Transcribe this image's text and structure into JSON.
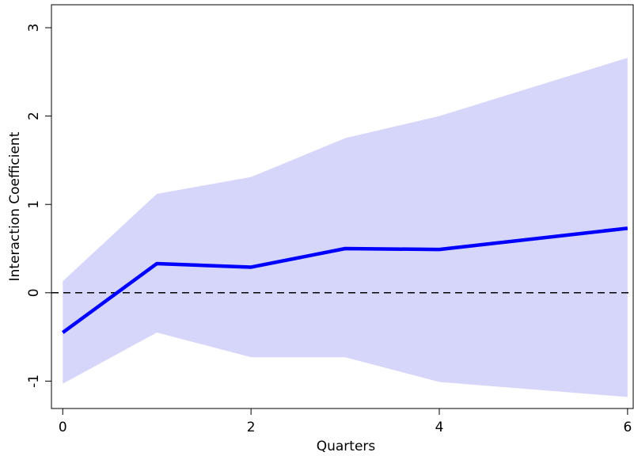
{
  "chart_data": {
    "type": "line_band",
    "x_label": "Quarters",
    "y_label": "Interaction Coefficient",
    "x": [
      0,
      1,
      2,
      3,
      4,
      6
    ],
    "series": [
      {
        "name": "Coefficient",
        "color": "#0000ff",
        "values": [
          -0.45,
          0.33,
          0.29,
          0.5,
          0.49,
          0.73
        ]
      }
    ],
    "band": {
      "color": "#d6d6fb",
      "lower": [
        -1.03,
        -0.45,
        -0.73,
        -0.73,
        -1.01,
        -1.18
      ],
      "upper": [
        0.13,
        1.12,
        1.31,
        1.75,
        2.0,
        2.66
      ]
    },
    "reference_line": 0,
    "xlim": [
      -0.12,
      6.06
    ],
    "ylim": [
      -1.31,
      3.26
    ],
    "xticks": [
      0,
      2,
      4,
      6
    ],
    "yticks": [
      -1,
      0,
      1,
      2,
      3
    ],
    "grid": false
  }
}
